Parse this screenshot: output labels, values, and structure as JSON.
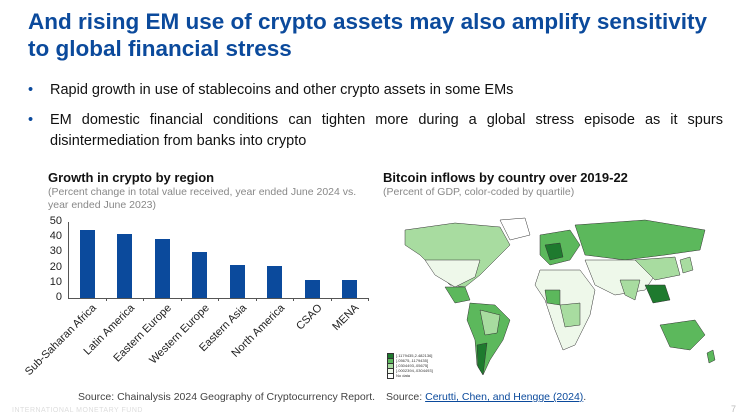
{
  "slide": {
    "title": "And rising EM use of crypto assets may also amplify sensitivity to global financial stress",
    "bullets": [
      "Rapid growth in use of stablecoins and other crypto assets in some EMs",
      "EM domestic financial conditions can tighten more during a global stress episode as it spurs disintermediation from banks into crypto"
    ],
    "footer": "INTERNATIONAL MONETARY FUND",
    "page_number": "7"
  },
  "left_chart": {
    "title": "Growth in crypto by region",
    "subtitle": "(Percent change in total value received, year ended June 2024 vs. year ended June 2023)",
    "source": "Source: Chainalysis 2024 Geography of Cryptocurrency Report."
  },
  "right_chart": {
    "title": "Bitcoin inflows by country over 2019-22",
    "subtitle": "(Percent of GDP, color-coded by quartile)",
    "source_prefix": "Source: ",
    "source_link": "Cerutti, Chen, and Hengge (2024)",
    "source_suffix": ".",
    "legend": [
      {
        "label": "[.1179435,2.482136]",
        "color": "#1e7a2e"
      },
      {
        "label": "[.05675,.1179435]",
        "color": "#5cb85c"
      },
      {
        "label": "[.0304493,.05675]",
        "color": "#a8dca0"
      },
      {
        "label": "[.0002394,.0304493]",
        "color": "#eef8ea"
      },
      {
        "label": "No data",
        "color": "#ffffff"
      }
    ]
  },
  "chart_data": [
    {
      "type": "bar",
      "title": "Growth in crypto by region",
      "subtitle": "(Percent change in total value received, year ended June 2024 vs. year ended June 2023)",
      "categories": [
        "Sub-Saharan Africa",
        "Latin America",
        "Eastern Europe",
        "Western Europe",
        "Eastern Asia",
        "North America",
        "CSAO",
        "MENA"
      ],
      "values": [
        45,
        42,
        39,
        30,
        22,
        21,
        12,
        12
      ],
      "xlabel": "",
      "ylabel": "",
      "ylim": [
        0,
        50
      ],
      "yticks": [
        0,
        10,
        20,
        30,
        40,
        50
      ],
      "color": "#0b4a9c",
      "grid": false,
      "legend": null
    },
    {
      "type": "choropleth-map",
      "title": "Bitcoin inflows by country over 2019-22",
      "subtitle": "(Percent of GDP, color-coded by quartile)",
      "legend_entries": [
        "[.1179435,2.482136]",
        "[.05675,.1179435]",
        "[.0304493,.05675]",
        "[.0002394,.0304493]",
        "No data"
      ]
    }
  ]
}
